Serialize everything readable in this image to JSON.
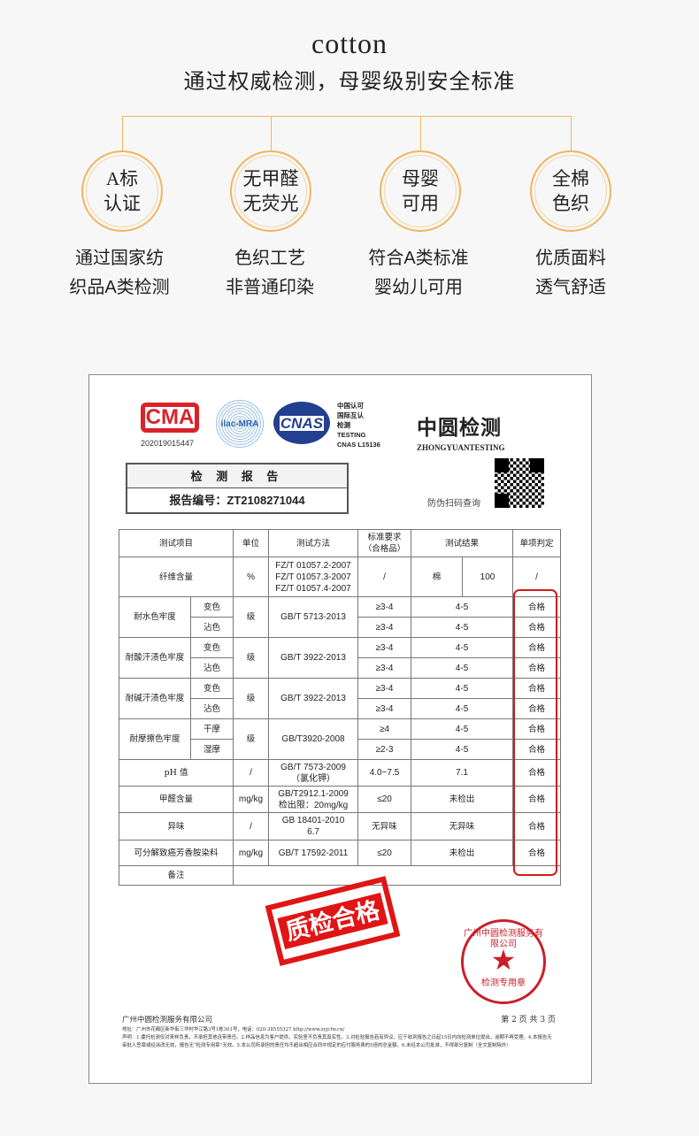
{
  "header": {
    "title": "cotton",
    "subtitle": "通过权威检测，母婴级别安全标准"
  },
  "accent_color": "#f0b560",
  "features": [
    {
      "badge": "A标\n认证",
      "desc": "通过国家纺\n织品A类检测"
    },
    {
      "badge": "无甲醛\n无荧光",
      "desc": "色织工艺\n非普通印染"
    },
    {
      "badge": "母婴\n可用",
      "desc": "符合A类标准\n婴幼儿可用"
    },
    {
      "badge": "全棉\n色织",
      "desc": "优质面料\n透气舒适"
    }
  ],
  "report": {
    "cma_logo": "CMA",
    "cma_number": "202019015447",
    "ilac_logo": "ilac-MRA",
    "cnas_logo": "CNAS",
    "cnas_text": "中国认可\n国际互认\n检测\nTESTING\nCNAS L15136",
    "brand": "中圆检测",
    "brand_en": "ZHONGYUANTESTING",
    "report_title": "检 测 报 告",
    "report_number": "报告编号：ZT2108271044",
    "qr_caption": "防伪扫码查询",
    "table": {
      "headers": [
        "测试项目",
        "单位",
        "测试方法",
        "标准要求\n（合格品）",
        "测试结果",
        "单项判定"
      ],
      "fiber": {
        "item": "纤维含量",
        "unit": "%",
        "method": "FZ/T 01057.2-2007\nFZ/T 01057.3-2007\nFZ/T 01057.4-2007",
        "standard": "/",
        "material": "棉",
        "value": "100",
        "verdict": "/"
      },
      "groups": [
        {
          "item": "耐水色牢度",
          "unit": "级",
          "method": "GB/T 5713-2013",
          "rows": [
            {
              "sub": "变色",
              "standard": "≥3-4",
              "result": "4-5",
              "verdict": "合格"
            },
            {
              "sub": "沾色",
              "standard": "≥3-4",
              "result": "4-5",
              "verdict": "合格"
            }
          ]
        },
        {
          "item": "耐酸汗渍色牢度",
          "unit": "级",
          "method": "GB/T 3922-2013",
          "rows": [
            {
              "sub": "变色",
              "standard": "≥3-4",
              "result": "4-5",
              "verdict": "合格"
            },
            {
              "sub": "沾色",
              "standard": "≥3-4",
              "result": "4-5",
              "verdict": "合格"
            }
          ]
        },
        {
          "item": "耐碱汗渍色牢度",
          "unit": "级",
          "method": "GB/T 3922-2013",
          "rows": [
            {
              "sub": "变色",
              "standard": "≥3-4",
              "result": "4-5",
              "verdict": "合格"
            },
            {
              "sub": "沾色",
              "standard": "≥3-4",
              "result": "4-5",
              "verdict": "合格"
            }
          ]
        },
        {
          "item": "耐摩擦色牢度",
          "unit": "级",
          "method": "GB/T3920-2008",
          "rows": [
            {
              "sub": "干摩",
              "standard": "≥4",
              "result": "4-5",
              "verdict": "合格"
            },
            {
              "sub": "湿摩",
              "standard": "≥2-3",
              "result": "4-5",
              "verdict": "合格"
            }
          ]
        }
      ],
      "singles": [
        {
          "item": "pH 值",
          "unit": "/",
          "method": "GB/T 7573-2009\n（氯化钾）",
          "standard": "4.0~7.5",
          "result": "7.1",
          "verdict": "合格"
        },
        {
          "item": "甲醛含量",
          "unit": "mg/kg",
          "method": "GB/T2912.1-2009\n检出限：20mg/kg",
          "standard": "≤20",
          "result": "未检出",
          "verdict": "合格"
        },
        {
          "item": "异味",
          "unit": "/",
          "method": "GB 18401-2010\n6.7",
          "standard": "无异味",
          "result": "无异味",
          "verdict": "合格"
        },
        {
          "item": "可分解致癌芳香胺染料",
          "unit": "mg/kg",
          "method": "GB/T 17592-2011",
          "standard": "≤20",
          "result": "未检出",
          "verdict": "合格"
        }
      ],
      "remark_label": "备注"
    },
    "stamp_pass": "质检合格",
    "seal_name": "广州中圆检测服务有限公司",
    "seal_use": "检测专用章",
    "footer_company": "广州中圆检测服务有限公司",
    "footer_page": "第 2 页 共 3 页",
    "footer_address": "地址：广州市花都区新华街三华村华江路3号1栋301号，电话：020-38555327 http://www.zyjcfw.cn/",
    "footer_notice": "声明：1.委托检测仅对来样负责，不承担其他连带责任。2.样品信息为客户提供，实验室不负责其真实性。3.对检验报告若有异议，应于收到报告之日起15日内向检测单位提出，逾期不再受理。4.本报告无审批人签章或经涂改无效，报告无“检测专用章”无效。5.本公司所承担的责任均不超出相应合同中规定的应付服务费的5倍的总金额。6.未经本公司批准，不得部分复制（全文复制除外）"
  }
}
